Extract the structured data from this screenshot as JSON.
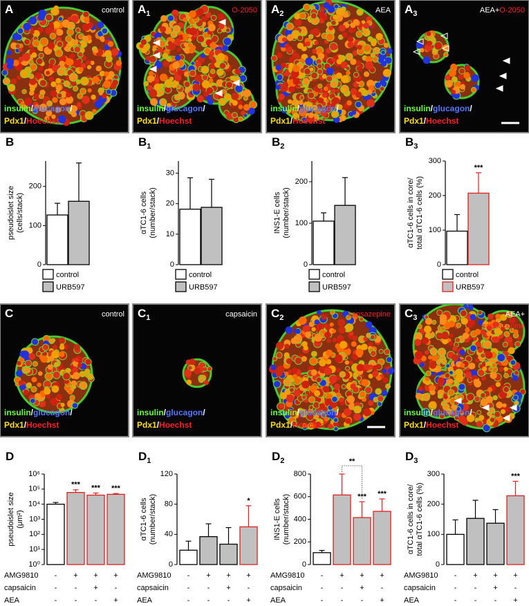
{
  "images": [
    {
      "letter": "A",
      "condition": [
        [
          {
            "text": "control",
            "color": "#ffffff"
          }
        ]
      ]
    },
    {
      "letter": "A",
      "sub": "1",
      "condition": [
        [
          {
            "text": "O-2050",
            "color": "#ff2020"
          }
        ]
      ]
    },
    {
      "letter": "A",
      "sub": "2",
      "condition": [
        [
          {
            "text": "AEA",
            "color": "#ffffff"
          }
        ]
      ]
    },
    {
      "letter": "A",
      "sub": "3",
      "condition": [
        [
          {
            "text": "AEA+",
            "color": "#ffffff"
          },
          {
            "text": "O-2050",
            "color": "#ff2020"
          }
        ]
      ]
    },
    {
      "letter": "C",
      "condition": [
        [
          {
            "text": "control",
            "color": "#ffffff"
          }
        ]
      ]
    },
    {
      "letter": "C",
      "sub": "1",
      "condition": [
        [
          {
            "text": "capsaicin",
            "color": "#ffffff"
          }
        ]
      ]
    },
    {
      "letter": "C",
      "sub": "2",
      "condition": [
        [
          {
            "text": "capsazepine",
            "color": "#ff2020"
          }
        ]
      ]
    },
    {
      "letter": "C",
      "sub": "3",
      "condition": [
        [
          {
            "text": "AEA+",
            "color": "#ffffff"
          }
        ],
        [
          {
            "text": "capsazepine",
            "color": "#ff2020"
          }
        ]
      ]
    }
  ],
  "stain_legend": [
    [
      {
        "text": "insulin",
        "color": "#66ff33"
      },
      {
        "text": "/",
        "color": "#ffffff"
      },
      {
        "text": "glucagon",
        "color": "#5577ff"
      },
      {
        "text": "/",
        "color": "#ffffff"
      }
    ],
    [
      {
        "text": "Pdx1",
        "color": "#ffe000"
      },
      {
        "text": "/",
        "color": "#ffffff"
      },
      {
        "text": "Hoechst",
        "color": "#ff2020"
      }
    ]
  ],
  "chart_data": [
    {
      "type": "bar",
      "letter": "B",
      "ylabel": [
        "pseudoislet size",
        "(cells/stack)"
      ],
      "categories": [
        "control",
        "URB597"
      ],
      "values": [
        127,
        162
      ],
      "errors": [
        30,
        98
      ],
      "ylim": [
        0,
        265
      ],
      "yticks": [
        0,
        100,
        200
      ],
      "fills": [
        "#ffffff",
        "#c0c0c0"
      ],
      "edges": [
        "#000000",
        "#000000"
      ]
    },
    {
      "type": "bar",
      "letter": "B",
      "sub": "1",
      "ylabel": [
        "αTC1-6 cells",
        "(number/stack)"
      ],
      "categories": [
        "control",
        "URB597"
      ],
      "values": [
        18.2,
        18.8
      ],
      "errors": [
        10.3,
        9.2
      ],
      "ylim": [
        0,
        34
      ],
      "yticks": [
        0,
        10,
        20,
        30
      ],
      "fills": [
        "#ffffff",
        "#c0c0c0"
      ],
      "edges": [
        "#000000",
        "#000000"
      ]
    },
    {
      "type": "bar",
      "letter": "B",
      "sub": "2",
      "ylabel": [
        "INS1-E cells",
        "(number/stack)"
      ],
      "categories": [
        "control",
        "URB597"
      ],
      "values": [
        105,
        143
      ],
      "errors": [
        20,
        67
      ],
      "ylim": [
        0,
        250
      ],
      "yticks": [
        0,
        100,
        200
      ],
      "fills": [
        "#ffffff",
        "#c0c0c0"
      ],
      "edges": [
        "#000000",
        "#000000"
      ]
    },
    {
      "type": "bar",
      "letter": "B",
      "sub": "3",
      "ylabel": [
        "αTC1-6 cells in core/",
        "total αTC1-6 cells (%)"
      ],
      "categories": [
        "control",
        "URB597"
      ],
      "values": [
        97,
        207
      ],
      "errors": [
        48,
        59
      ],
      "ylim": [
        0,
        300
      ],
      "yticks": [
        0,
        100,
        200,
        300
      ],
      "fills": [
        "#ffffff",
        "#c0c0c0"
      ],
      "edges": [
        "#000000",
        "#e02020"
      ],
      "stars": [
        null,
        "***"
      ]
    },
    {
      "type": "bar",
      "letter": "D",
      "ylabel": [
        "pseudoislet size",
        "(μm²)"
      ],
      "log_scale": true,
      "values": [
        10000,
        60000,
        40000,
        45000
      ],
      "errors": [
        3000,
        30000,
        15000,
        6000
      ],
      "ylim": [
        1,
        1000000
      ],
      "yticks": [
        {
          "value": 1,
          "label": "10⁰"
        },
        {
          "value": 10,
          "label": "10¹"
        },
        {
          "value": 100,
          "label": "10²"
        },
        {
          "value": 1000,
          "label": "10³"
        },
        {
          "value": 10000,
          "label": "10⁴"
        },
        {
          "value": 100000,
          "label": "10⁵"
        },
        {
          "value": 1000000,
          "label": "10⁶"
        }
      ],
      "fills": [
        "#ffffff",
        "#c0c0c0",
        "#c0c0c0",
        "#c0c0c0"
      ],
      "edges": [
        "#000000",
        "#e02020",
        "#e02020",
        "#e02020"
      ],
      "stars": [
        null,
        "***",
        "***",
        "***"
      ],
      "conditions": [
        {
          "name": "AMG9810",
          "signs": [
            "-",
            "+",
            "+",
            "+"
          ]
        },
        {
          "name": "capsaicin",
          "signs": [
            "-",
            "-",
            "+",
            "-"
          ]
        },
        {
          "name": "AEA",
          "signs": [
            "-",
            "-",
            "-",
            "+"
          ]
        }
      ]
    },
    {
      "type": "bar",
      "letter": "D",
      "sub": "1",
      "ylabel": [
        "αTC1-6 cells",
        "(number/stack)"
      ],
      "values": [
        19,
        37,
        27,
        50
      ],
      "errors": [
        12,
        17,
        22,
        28
      ],
      "ylim": [
        0,
        120
      ],
      "yticks": [
        0,
        40,
        80,
        120
      ],
      "fills": [
        "#ffffff",
        "#c0c0c0",
        "#c0c0c0",
        "#c0c0c0"
      ],
      "edges": [
        "#000000",
        "#000000",
        "#000000",
        "#e02020"
      ],
      "stars": [
        null,
        null,
        null,
        "*"
      ],
      "conditions": [
        {
          "name": "AMG9810",
          "signs": [
            "-",
            "+",
            "+",
            "+"
          ]
        },
        {
          "name": "capsaicin",
          "signs": [
            "-",
            "-",
            "+",
            "-"
          ]
        },
        {
          "name": "AEA",
          "signs": [
            "-",
            "-",
            "-",
            "+"
          ]
        }
      ]
    },
    {
      "type": "bar",
      "letter": "D",
      "sub": "2",
      "ylabel": [
        "INS1-E cells",
        "(number/stack)"
      ],
      "values": [
        105,
        615,
        415,
        470
      ],
      "errors": [
        20,
        185,
        140,
        110
      ],
      "ylim": [
        0,
        800
      ],
      "yticks": [
        0,
        200,
        400,
        600,
        800
      ],
      "fills": [
        "#ffffff",
        "#c0c0c0",
        "#c0c0c0",
        "#c0c0c0"
      ],
      "edges": [
        "#000000",
        "#e02020",
        "#e02020",
        "#e02020"
      ],
      "stars": [
        null,
        null,
        "***",
        "***"
      ],
      "comparisons": [
        {
          "bars": [
            1,
            2
          ],
          "text": "**"
        }
      ],
      "conditions": [
        {
          "name": "AMG9810",
          "signs": [
            "-",
            "+",
            "+",
            "+"
          ]
        },
        {
          "name": "capsaicin",
          "signs": [
            "-",
            "-",
            "+",
            "-"
          ]
        },
        {
          "name": "AEA",
          "signs": [
            "-",
            "-",
            "-",
            "+"
          ]
        }
      ]
    },
    {
      "type": "bar",
      "letter": "D",
      "sub": "3",
      "ylabel": [
        "αTC1-6 cells in core/",
        "total αTC1-6 cells (%)"
      ],
      "values": [
        100,
        153,
        137,
        228
      ],
      "errors": [
        48,
        60,
        45,
        48
      ],
      "ylim": [
        0,
        300
      ],
      "yticks": [
        0,
        100,
        200,
        300
      ],
      "fills": [
        "#ffffff",
        "#c0c0c0",
        "#c0c0c0",
        "#c0c0c0"
      ],
      "edges": [
        "#000000",
        "#000000",
        "#000000",
        "#e02020"
      ],
      "stars": [
        null,
        null,
        null,
        "***"
      ],
      "conditions": [
        {
          "name": "AMG9810",
          "signs": [
            "-",
            "+",
            "+",
            "+"
          ]
        },
        {
          "name": "capsaicin",
          "signs": [
            "-",
            "-",
            "+",
            "-"
          ]
        },
        {
          "name": "AEA",
          "signs": [
            "-",
            "-",
            "-",
            "+"
          ]
        }
      ]
    }
  ]
}
